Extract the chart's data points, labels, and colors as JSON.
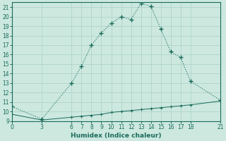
{
  "xlabel": "Humidex (Indice chaleur)",
  "background_color": "#cce8df",
  "grid_color": "#b0d4cb",
  "line_color": "#1a6b5a",
  "xlim": [
    0,
    21
  ],
  "ylim": [
    9,
    21.5
  ],
  "xticks": [
    0,
    3,
    6,
    7,
    8,
    9,
    10,
    11,
    12,
    13,
    14,
    15,
    16,
    17,
    18,
    21
  ],
  "yticks": [
    9,
    10,
    11,
    12,
    13,
    14,
    15,
    16,
    17,
    18,
    19,
    20,
    21
  ],
  "series1_x": [
    0,
    3,
    6,
    7,
    8,
    9,
    10,
    11,
    12,
    13,
    14,
    15,
    16,
    17,
    18,
    21
  ],
  "series1_y": [
    10.5,
    9.2,
    13.0,
    14.8,
    17.0,
    18.3,
    19.3,
    20.0,
    19.7,
    21.4,
    21.1,
    18.7,
    16.3,
    15.7,
    13.2,
    11.2
  ],
  "series2_x": [
    0,
    3,
    6,
    7,
    8,
    9,
    10,
    11,
    12,
    13,
    14,
    15,
    16,
    17,
    18,
    21
  ],
  "series2_y": [
    9.7,
    9.1,
    9.4,
    9.5,
    9.6,
    9.7,
    9.9,
    10.0,
    10.1,
    10.2,
    10.3,
    10.4,
    10.5,
    10.6,
    10.7,
    11.1
  ]
}
